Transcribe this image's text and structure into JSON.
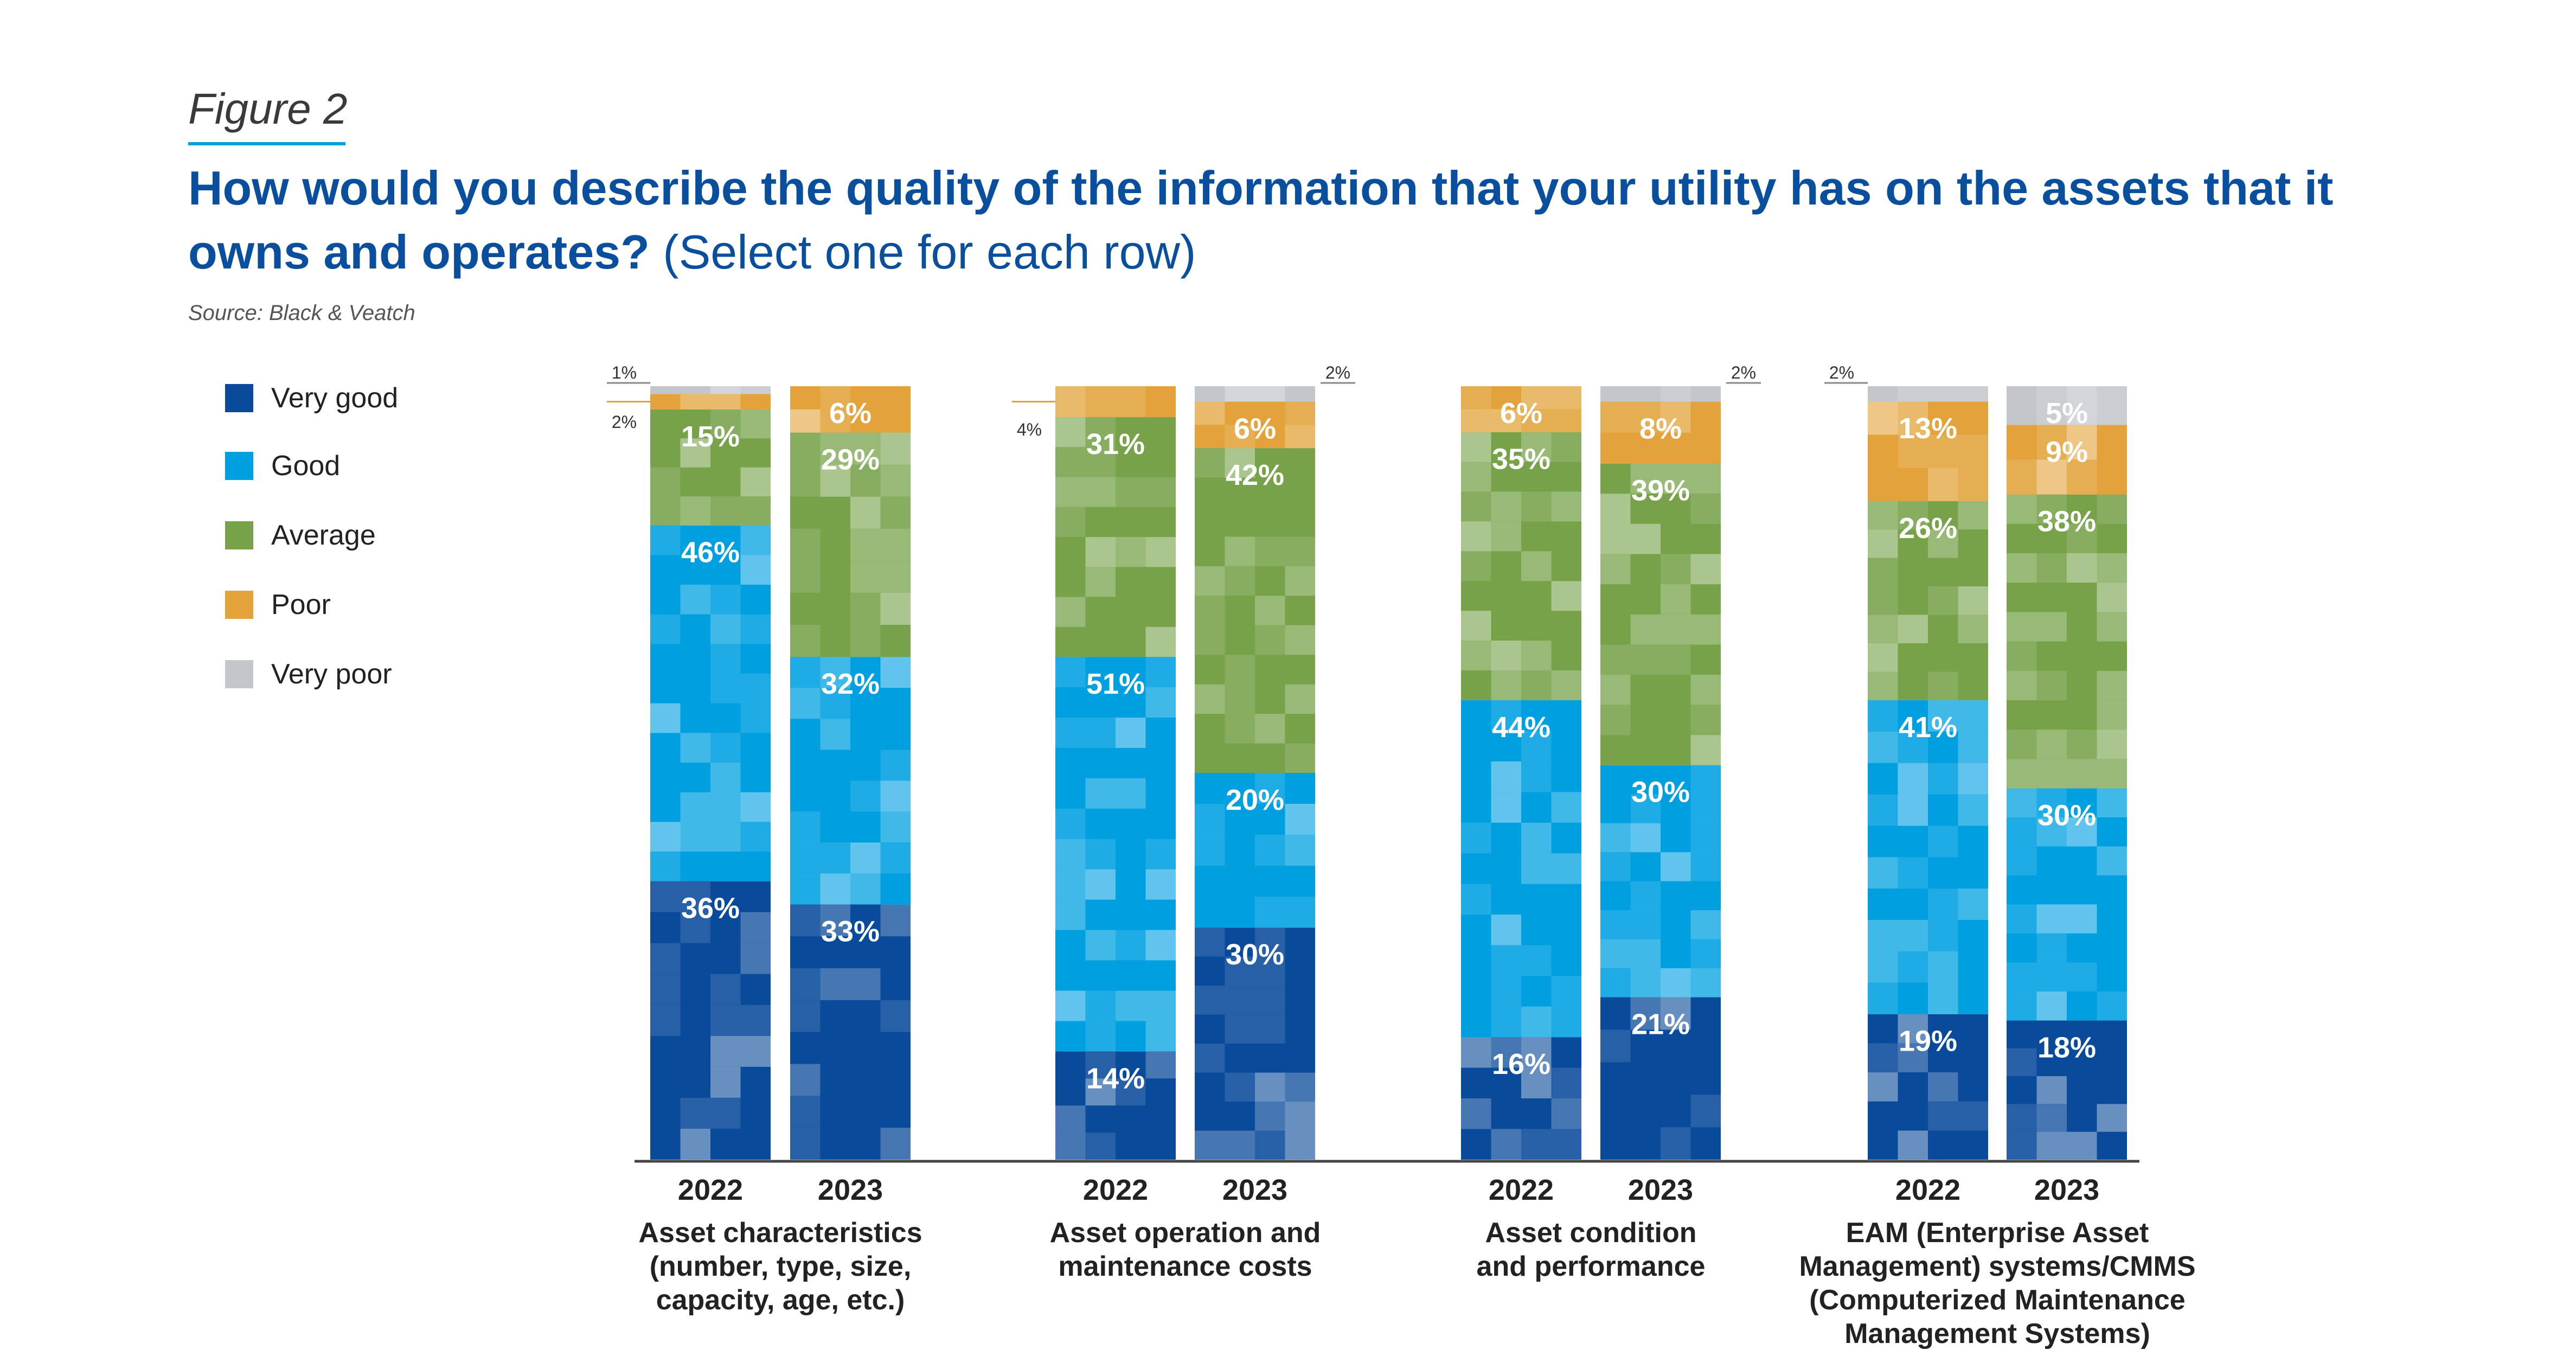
{
  "figure_label": "Figure 2",
  "title_bold": "How would you describe the quality of the information that your utility has on the assets that it owns and operates?",
  "title_normal": " (Select one for each row)",
  "source": "Source: Black & Veatch",
  "colors": {
    "very_good": "#0a4a9a",
    "good": "#00a0e0",
    "average": "#77a24a",
    "poor": "#e3a33a",
    "very_poor": "#c3c7cc",
    "axis": "#444444",
    "text_dark": "#222222"
  },
  "legend": [
    {
      "label": "Very good",
      "key": "very_good"
    },
    {
      "label": "Good",
      "key": "good"
    },
    {
      "label": "Average",
      "key": "average"
    },
    {
      "label": "Poor",
      "key": "poor"
    },
    {
      "label": "Very poor",
      "key": "very_poor"
    }
  ],
  "chart_data": {
    "type": "bar",
    "stacked": true,
    "normalized": true,
    "series_order": [
      "Very good",
      "Good",
      "Average",
      "Poor",
      "Very poor"
    ],
    "groups": [
      {
        "category": "Asset characteristics (number, type, size, capacity, age, etc.)",
        "label_lines": [
          "Asset characteristics",
          "(number, type, size,",
          "capacity, age, etc.)"
        ],
        "bars": [
          {
            "year": "2022",
            "values": [
              36,
              46,
              15,
              2,
              1
            ],
            "labels": [
              "36%",
              "46%",
              "15%",
              "2%",
              "1%"
            ]
          },
          {
            "year": "2023",
            "values": [
              33,
              32,
              29,
              6,
              0
            ],
            "labels": [
              "33%",
              "32%",
              "29%",
              "6%",
              ""
            ]
          }
        ]
      },
      {
        "category": "Asset operation and maintenance costs",
        "label_lines": [
          "Asset operation and",
          "maintenance costs"
        ],
        "bars": [
          {
            "year": "2022",
            "values": [
              14,
              51,
              31,
              4,
              0
            ],
            "labels": [
              "14%",
              "51%",
              "31%",
              "4%",
              ""
            ]
          },
          {
            "year": "2023",
            "values": [
              30,
              20,
              42,
              6,
              2
            ],
            "labels": [
              "30%",
              "20%",
              "42%",
              "6%",
              "2%"
            ]
          }
        ]
      },
      {
        "category": "Asset condition and performance",
        "label_lines": [
          "Asset condition",
          "and performance"
        ],
        "bars": [
          {
            "year": "2022",
            "values": [
              16,
              44,
              35,
              6,
              0
            ],
            "labels": [
              "16%",
              "44%",
              "35%",
              "6%",
              ""
            ]
          },
          {
            "year": "2023",
            "values": [
              21,
              30,
              39,
              8,
              2
            ],
            "labels": [
              "21%",
              "30%",
              "39%",
              "8%",
              "2%"
            ]
          }
        ]
      },
      {
        "category": "EAM (Enterprise Asset Management) systems/CMMS (Computerized Maintenance Management Systems)",
        "label_lines": [
          "EAM (Enterprise Asset",
          "Management) systems/CMMS",
          "(Computerized Maintenance",
          "Management Systems)"
        ],
        "bars": [
          {
            "year": "2022",
            "values": [
              19,
              41,
              26,
              13,
              2
            ],
            "labels": [
              "19%",
              "41%",
              "26%",
              "13%",
              "2%"
            ]
          },
          {
            "year": "2023",
            "values": [
              18,
              30,
              38,
              9,
              5
            ],
            "labels": [
              "18%",
              "30%",
              "38%",
              "9%",
              "5%"
            ]
          }
        ]
      }
    ]
  }
}
